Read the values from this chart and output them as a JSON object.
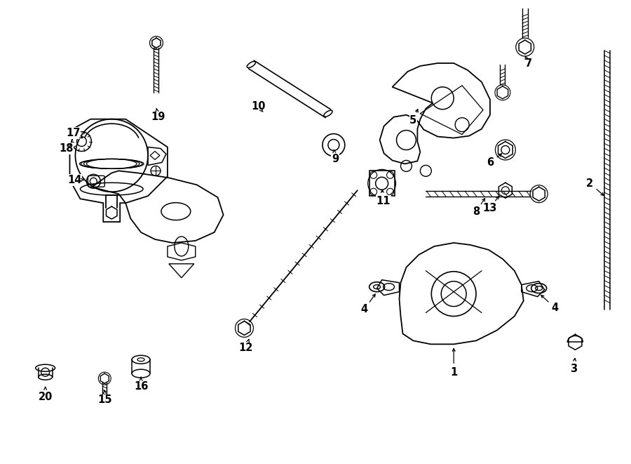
{
  "bg_color": "#ffffff",
  "fig_width": 9.0,
  "fig_height": 6.61
}
